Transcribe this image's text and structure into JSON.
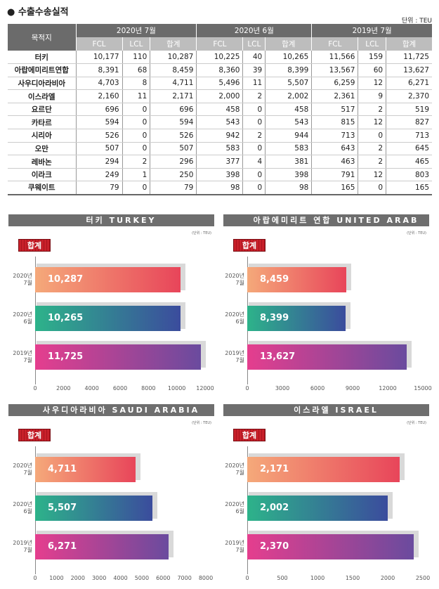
{
  "title": "● 수출수송실적",
  "unit": "단위 : TEU",
  "table": {
    "dest_header": "목적지",
    "groups": [
      "2020년 7월",
      "2020년 6월",
      "2019년 7월"
    ],
    "subs": [
      "FCL",
      "LCL",
      "합계"
    ],
    "rows": [
      [
        "터키",
        "10,177",
        "110",
        "10,287",
        "10,225",
        "40",
        "10,265",
        "11,566",
        "159",
        "11,725"
      ],
      [
        "아랍에미리트연합",
        "8,391",
        "68",
        "8,459",
        "8,360",
        "39",
        "8,399",
        "13,567",
        "60",
        "13,627"
      ],
      [
        "사우디아라비아",
        "4,703",
        "8",
        "4,711",
        "5,496",
        "11",
        "5,507",
        "6,259",
        "12",
        "6,271"
      ],
      [
        "이스라엘",
        "2,160",
        "11",
        "2,171",
        "2,000",
        "2",
        "2,002",
        "2,361",
        "9",
        "2,370"
      ],
      [
        "요르단",
        "696",
        "0",
        "696",
        "458",
        "0",
        "458",
        "517",
        "2",
        "519"
      ],
      [
        "카타르",
        "594",
        "0",
        "594",
        "543",
        "0",
        "543",
        "815",
        "12",
        "827"
      ],
      [
        "시리아",
        "526",
        "0",
        "526",
        "942",
        "2",
        "944",
        "713",
        "0",
        "713"
      ],
      [
        "오만",
        "507",
        "0",
        "507",
        "583",
        "0",
        "583",
        "643",
        "2",
        "645"
      ],
      [
        "레바논",
        "294",
        "2",
        "296",
        "377",
        "4",
        "381",
        "463",
        "2",
        "465"
      ],
      [
        "이라크",
        "249",
        "1",
        "250",
        "398",
        "0",
        "398",
        "791",
        "12",
        "803"
      ],
      [
        "쿠웨이트",
        "79",
        "0",
        "79",
        "98",
        "0",
        "98",
        "165",
        "0",
        "165"
      ]
    ]
  },
  "chart_common": {
    "badge": "합계",
    "unit": "(단위 : TEU)",
    "colors": [
      [
        "#f5a97a",
        "#e8455a"
      ],
      [
        "#2db38a",
        "#3b4c9d"
      ],
      [
        "#e53e8e",
        "#6a4b9e"
      ]
    ]
  },
  "chart_data": [
    {
      "type": "bar",
      "title": "터키 TURKEY",
      "flag": "turkey",
      "categories": [
        "2020년 7월",
        "2020년 6월",
        "2019년 7월"
      ],
      "values": [
        10287,
        10265,
        11725
      ],
      "labels": [
        "10,287",
        "10,265",
        "11,725"
      ],
      "xlim": [
        0,
        12000
      ],
      "ticks": [
        0,
        2000,
        4000,
        6000,
        8000,
        10000,
        12000
      ]
    },
    {
      "type": "bar",
      "title": "아랍에미리트 연합 UNITED ARAB EMIRATES",
      "flag": "uae",
      "categories": [
        "2020년 7월",
        "2020년 6월",
        "2019년 7월"
      ],
      "values": [
        8459,
        8399,
        13627
      ],
      "labels": [
        "8,459",
        "8,399",
        "13,627"
      ],
      "xlim": [
        0,
        15000
      ],
      "ticks": [
        0,
        3000,
        6000,
        9000,
        12000,
        15000
      ]
    },
    {
      "type": "bar",
      "title": "사우디아라비아 SAUDI ARABIA",
      "flag": "saudi",
      "categories": [
        "2020년 7월",
        "2020년 6월",
        "2019년 7월"
      ],
      "values": [
        4711,
        5507,
        6271
      ],
      "labels": [
        "4,711",
        "5,507",
        "6,271"
      ],
      "xlim": [
        0,
        8000
      ],
      "ticks": [
        0,
        1000,
        2000,
        3000,
        4000,
        5000,
        6000,
        7000,
        8000
      ]
    },
    {
      "type": "bar",
      "title": "이스라엘 ISRAEL",
      "flag": "israel",
      "categories": [
        "2020년 7월",
        "2020년 6월",
        "2019년 7월"
      ],
      "values": [
        2171,
        2002,
        2370
      ],
      "labels": [
        "2,171",
        "2,002",
        "2,370"
      ],
      "xlim": [
        0,
        2500
      ],
      "ticks": [
        0,
        500,
        1000,
        1500,
        2000,
        2500
      ]
    }
  ]
}
